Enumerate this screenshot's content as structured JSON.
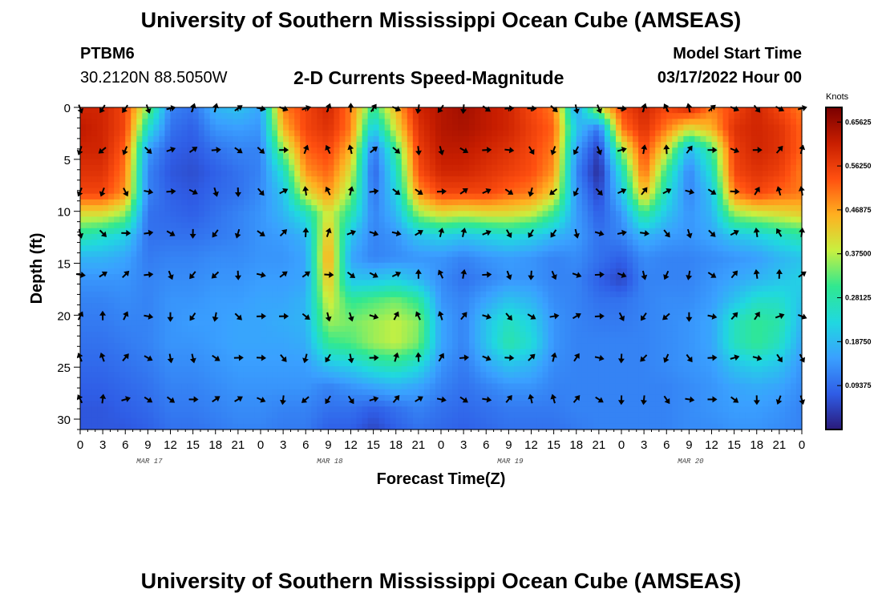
{
  "header": {
    "title": "University of Southern Mississippi Ocean Cube (AMSEAS)",
    "station": "PTBM6",
    "coords": "30.2120N  88.5050W",
    "subtitle": "2-D Currents Speed-Magnitude",
    "model_start_label": "Model Start Time",
    "model_start_value": "03/17/2022 Hour 00"
  },
  "footer": {
    "title": "University of Southern Mississippi Ocean Cube (AMSEAS)"
  },
  "chart_data": {
    "type": "heatmap",
    "title": "2-D Currents Speed-Magnitude",
    "xlabel": "Forecast Time(Z)",
    "ylabel": "Depth (ft)",
    "x_ticks": [
      "0",
      "3",
      "6",
      "9",
      "12",
      "15",
      "18",
      "21",
      "0",
      "3",
      "6",
      "9",
      "12",
      "15",
      "18",
      "21",
      "0",
      "3",
      "6",
      "9",
      "12",
      "15",
      "18",
      "21",
      "0",
      "3",
      "6",
      "9",
      "12",
      "15",
      "18",
      "21",
      "0"
    ],
    "x_hours": [
      0,
      3,
      6,
      9,
      12,
      15,
      18,
      21,
      24,
      27,
      30,
      33,
      36,
      39,
      42,
      45,
      48,
      51,
      54,
      57,
      60,
      63,
      66,
      69,
      72,
      75,
      78,
      81,
      84,
      87,
      90,
      93,
      96
    ],
    "date_labels": [
      {
        "label": "MAR 17",
        "hour": 9
      },
      {
        "label": "MAR 18",
        "hour": 33
      },
      {
        "label": "MAR 19",
        "hour": 57
      },
      {
        "label": "MAR 20",
        "hour": 81
      }
    ],
    "xlim": [
      0,
      96
    ],
    "y_ticks": [
      0,
      5,
      10,
      15,
      20,
      25,
      30
    ],
    "ylim": [
      0,
      31
    ],
    "colorbar": {
      "unit": "Knots",
      "range": [
        0,
        0.6875
      ],
      "tick_values": [
        0.09375,
        0.1875,
        0.28125,
        0.375,
        0.46875,
        0.5625,
        0.65625
      ],
      "tick_labels": [
        "0.09375",
        "0.18750",
        "0.28125",
        "0.37500",
        "0.46875",
        "0.56250",
        "0.65625"
      ],
      "colors": [
        "#2a1a7a",
        "#2f5de6",
        "#3aa0ff",
        "#20d8e0",
        "#30e890",
        "#c8f040",
        "#ffb020",
        "#ff5010",
        "#c81e00",
        "#7a0000"
      ]
    },
    "arrow_depths": [
      0,
      4,
      8,
      12,
      16,
      20,
      24,
      28
    ],
    "arrow_hours": [
      0,
      3,
      6,
      9,
      12,
      15,
      18,
      21,
      24,
      27,
      30,
      33,
      36,
      39,
      42,
      45,
      48,
      51,
      54,
      57,
      60,
      63,
      66,
      69,
      72,
      75,
      78,
      81,
      84,
      87,
      90,
      93,
      96
    ],
    "speed_grid_note": "speed field approximated in knots on 3-hour x 2-ft grid",
    "speed_knots": [
      [
        0.6,
        0.6,
        0.55,
        0.35,
        0.12,
        0.1,
        0.18,
        0.2,
        0.16,
        0.5,
        0.55,
        0.6,
        0.5,
        0.3,
        0.45,
        0.6,
        0.63,
        0.65,
        0.62,
        0.6,
        0.55,
        0.5,
        0.15,
        0.4,
        0.55,
        0.6,
        0.55,
        0.6,
        0.5,
        0.55,
        0.6,
        0.55,
        0.5
      ],
      [
        0.62,
        0.6,
        0.55,
        0.25,
        0.1,
        0.08,
        0.14,
        0.15,
        0.14,
        0.45,
        0.55,
        0.58,
        0.5,
        0.2,
        0.4,
        0.58,
        0.63,
        0.64,
        0.62,
        0.6,
        0.56,
        0.52,
        0.2,
        0.1,
        0.5,
        0.58,
        0.5,
        0.4,
        0.45,
        0.58,
        0.6,
        0.58,
        0.52
      ],
      [
        0.6,
        0.6,
        0.52,
        0.15,
        0.08,
        0.07,
        0.1,
        0.12,
        0.12,
        0.35,
        0.52,
        0.55,
        0.45,
        0.1,
        0.3,
        0.56,
        0.62,
        0.62,
        0.6,
        0.58,
        0.55,
        0.5,
        0.15,
        0.04,
        0.35,
        0.55,
        0.4,
        0.18,
        0.3,
        0.56,
        0.6,
        0.58,
        0.52
      ],
      [
        0.58,
        0.58,
        0.5,
        0.12,
        0.07,
        0.06,
        0.08,
        0.1,
        0.12,
        0.25,
        0.48,
        0.52,
        0.4,
        0.08,
        0.25,
        0.54,
        0.6,
        0.6,
        0.58,
        0.56,
        0.54,
        0.48,
        0.12,
        0.02,
        0.25,
        0.52,
        0.3,
        0.12,
        0.25,
        0.55,
        0.58,
        0.56,
        0.5
      ],
      [
        0.55,
        0.55,
        0.48,
        0.12,
        0.08,
        0.07,
        0.09,
        0.1,
        0.13,
        0.2,
        0.4,
        0.48,
        0.35,
        0.1,
        0.22,
        0.48,
        0.55,
        0.55,
        0.55,
        0.52,
        0.5,
        0.42,
        0.14,
        0.05,
        0.2,
        0.45,
        0.25,
        0.12,
        0.2,
        0.5,
        0.55,
        0.52,
        0.5
      ],
      [
        0.4,
        0.4,
        0.35,
        0.1,
        0.09,
        0.08,
        0.1,
        0.12,
        0.14,
        0.18,
        0.25,
        0.4,
        0.28,
        0.12,
        0.18,
        0.35,
        0.4,
        0.38,
        0.4,
        0.4,
        0.38,
        0.3,
        0.15,
        0.08,
        0.14,
        0.3,
        0.2,
        0.14,
        0.18,
        0.35,
        0.38,
        0.4,
        0.42
      ],
      [
        0.28,
        0.25,
        0.22,
        0.1,
        0.1,
        0.1,
        0.11,
        0.12,
        0.14,
        0.15,
        0.18,
        0.45,
        0.2,
        0.12,
        0.14,
        0.2,
        0.22,
        0.2,
        0.22,
        0.24,
        0.22,
        0.18,
        0.15,
        0.1,
        0.12,
        0.18,
        0.15,
        0.14,
        0.16,
        0.2,
        0.22,
        0.25,
        0.28
      ],
      [
        0.18,
        0.18,
        0.16,
        0.11,
        0.12,
        0.12,
        0.13,
        0.13,
        0.14,
        0.14,
        0.16,
        0.48,
        0.16,
        0.12,
        0.13,
        0.14,
        0.14,
        0.12,
        0.14,
        0.15,
        0.14,
        0.12,
        0.13,
        0.1,
        0.08,
        0.13,
        0.12,
        0.12,
        0.13,
        0.14,
        0.15,
        0.18,
        0.2
      ],
      [
        0.14,
        0.14,
        0.14,
        0.12,
        0.13,
        0.13,
        0.14,
        0.14,
        0.15,
        0.15,
        0.16,
        0.45,
        0.2,
        0.2,
        0.22,
        0.18,
        0.13,
        0.1,
        0.12,
        0.14,
        0.14,
        0.12,
        0.12,
        0.08,
        0.05,
        0.12,
        0.12,
        0.12,
        0.14,
        0.16,
        0.18,
        0.2,
        0.22
      ],
      [
        0.12,
        0.12,
        0.13,
        0.12,
        0.14,
        0.14,
        0.15,
        0.15,
        0.16,
        0.16,
        0.18,
        0.4,
        0.3,
        0.32,
        0.34,
        0.3,
        0.14,
        0.12,
        0.16,
        0.2,
        0.18,
        0.13,
        0.12,
        0.1,
        0.1,
        0.12,
        0.13,
        0.13,
        0.15,
        0.2,
        0.25,
        0.25,
        0.2
      ],
      [
        0.11,
        0.11,
        0.12,
        0.12,
        0.14,
        0.15,
        0.15,
        0.16,
        0.16,
        0.17,
        0.18,
        0.36,
        0.34,
        0.36,
        0.38,
        0.35,
        0.16,
        0.12,
        0.2,
        0.26,
        0.22,
        0.14,
        0.12,
        0.11,
        0.11,
        0.12,
        0.13,
        0.14,
        0.16,
        0.26,
        0.3,
        0.28,
        0.18
      ],
      [
        0.1,
        0.1,
        0.11,
        0.12,
        0.14,
        0.14,
        0.15,
        0.16,
        0.16,
        0.16,
        0.17,
        0.3,
        0.32,
        0.36,
        0.38,
        0.34,
        0.16,
        0.12,
        0.2,
        0.28,
        0.24,
        0.14,
        0.12,
        0.12,
        0.12,
        0.12,
        0.13,
        0.14,
        0.16,
        0.26,
        0.3,
        0.26,
        0.16
      ],
      [
        0.09,
        0.09,
        0.1,
        0.11,
        0.13,
        0.13,
        0.14,
        0.15,
        0.15,
        0.15,
        0.15,
        0.2,
        0.22,
        0.26,
        0.28,
        0.24,
        0.14,
        0.11,
        0.16,
        0.2,
        0.18,
        0.13,
        0.12,
        0.12,
        0.12,
        0.12,
        0.13,
        0.14,
        0.15,
        0.2,
        0.22,
        0.2,
        0.14
      ],
      [
        0.08,
        0.08,
        0.09,
        0.1,
        0.12,
        0.12,
        0.13,
        0.14,
        0.14,
        0.14,
        0.14,
        0.12,
        0.14,
        0.16,
        0.18,
        0.16,
        0.12,
        0.1,
        0.12,
        0.14,
        0.14,
        0.12,
        0.12,
        0.12,
        0.12,
        0.12,
        0.12,
        0.13,
        0.14,
        0.16,
        0.17,
        0.16,
        0.13
      ],
      [
        0.07,
        0.07,
        0.08,
        0.09,
        0.11,
        0.11,
        0.12,
        0.13,
        0.13,
        0.12,
        0.12,
        0.1,
        0.1,
        0.08,
        0.1,
        0.12,
        0.1,
        0.09,
        0.1,
        0.11,
        0.11,
        0.11,
        0.12,
        0.12,
        0.12,
        0.12,
        0.12,
        0.13,
        0.14,
        0.15,
        0.15,
        0.14,
        0.12
      ],
      [
        0.07,
        0.07,
        0.07,
        0.08,
        0.1,
        0.1,
        0.11,
        0.12,
        0.12,
        0.11,
        0.11,
        0.08,
        0.08,
        0.05,
        0.08,
        0.1,
        0.09,
        0.08,
        0.09,
        0.1,
        0.1,
        0.1,
        0.11,
        0.12,
        0.12,
        0.12,
        0.12,
        0.13,
        0.13,
        0.14,
        0.14,
        0.13,
        0.12
      ]
    ]
  }
}
